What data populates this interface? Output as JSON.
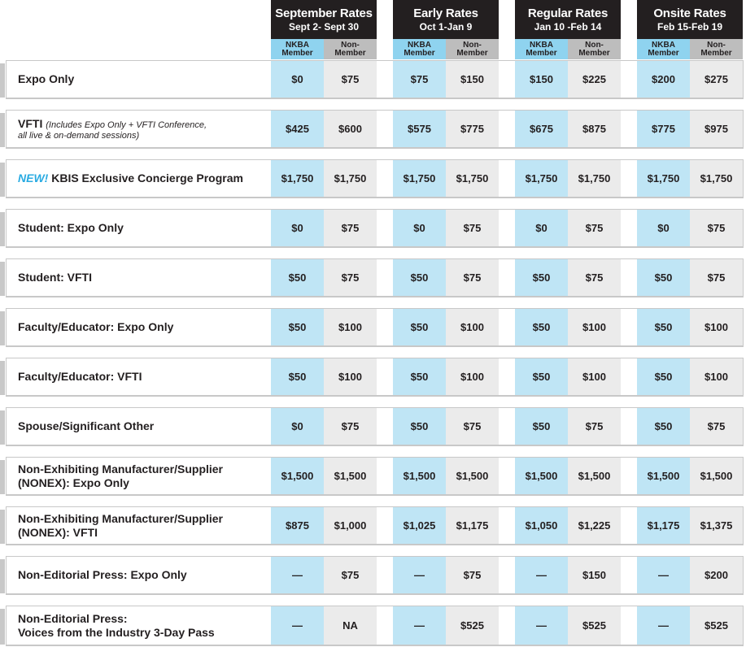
{
  "periods": [
    {
      "title": "September Rates",
      "dates": "Sept 2- Sept 30"
    },
    {
      "title": "Early Rates",
      "dates": "Oct 1-Jan 9"
    },
    {
      "title": "Regular Rates",
      "dates": "Jan 10 -Feb 14"
    },
    {
      "title": "Onsite Rates",
      "dates": "Feb 15-Feb 19"
    }
  ],
  "member_label": [
    "NKBA",
    "Member"
  ],
  "nonmember_label": [
    "Non-",
    "Member"
  ],
  "new_label": "NEW!",
  "rows": [
    {
      "label": "Expo Only",
      "prices": [
        "$0",
        "$75",
        "$75",
        "$150",
        "$150",
        "$225",
        "$200",
        "$275"
      ]
    },
    {
      "label": "VFTI",
      "note1": "(Includes Expo Only + VFTI Conference,",
      "note2": "all live & on-demand sessions)",
      "prices": [
        "$425",
        "$600",
        "$575",
        "$775",
        "$675",
        "$875",
        "$775",
        "$975"
      ]
    },
    {
      "label": "KBIS Exclusive Concierge Program",
      "is_new": true,
      "prices": [
        "$1,750",
        "$1,750",
        "$1,750",
        "$1,750",
        "$1,750",
        "$1,750",
        "$1,750",
        "$1,750"
      ]
    },
    {
      "label": "Student: Expo Only",
      "prices": [
        "$0",
        "$75",
        "$0",
        "$75",
        "$0",
        "$75",
        "$0",
        "$75"
      ]
    },
    {
      "label": "Student: VFTI",
      "prices": [
        "$50",
        "$75",
        "$50",
        "$75",
        "$50",
        "$75",
        "$50",
        "$75"
      ]
    },
    {
      "label": "Faculty/Educator: Expo Only",
      "prices": [
        "$50",
        "$100",
        "$50",
        "$100",
        "$50",
        "$100",
        "$50",
        "$100"
      ]
    },
    {
      "label": "Faculty/Educator: VFTI",
      "prices": [
        "$50",
        "$100",
        "$50",
        "$100",
        "$50",
        "$100",
        "$50",
        "$100"
      ]
    },
    {
      "label": "Spouse/Significant Other",
      "prices": [
        "$0",
        "$75",
        "$50",
        "$75",
        "$50",
        "$75",
        "$50",
        "$75"
      ]
    },
    {
      "label": "Non-Exhibiting Manufacturer/Supplier",
      "label2": "(NONEX): Expo Only",
      "prices": [
        "$1,500",
        "$1,500",
        "$1,500",
        "$1,500",
        "$1,500",
        "$1,500",
        "$1,500",
        "$1,500"
      ]
    },
    {
      "label": "Non-Exhibiting Manufacturer/Supplier",
      "label2": "(NONEX): VFTI",
      "prices": [
        "$875",
        "$1,000",
        "$1,025",
        "$1,175",
        "$1,050",
        "$1,225",
        "$1,175",
        "$1,375"
      ]
    },
    {
      "label": "Non-Editorial Press: Expo Only",
      "prices": [
        "—",
        "$75",
        "—",
        "$75",
        "—",
        "$150",
        "—",
        "$200"
      ]
    },
    {
      "label": "Non-Editorial Press:",
      "label2": "Voices from the Industry 3-Day Pass",
      "prices": [
        "—",
        "NA",
        "—",
        "$525",
        "—",
        "$525",
        "—",
        "$525"
      ]
    }
  ]
}
